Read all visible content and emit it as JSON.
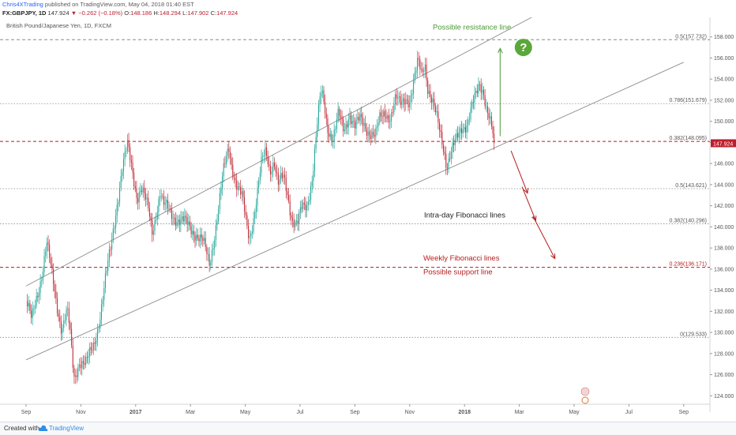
{
  "header": {
    "author": "Chris4XTrading",
    "published": "published on TradingView.com, May 04, 2018 01:40 EST",
    "symbol_interval": "FX:GBPJPY, 1D",
    "last": "147.924",
    "change": "▼ −0.262 (−0.18%)",
    "o_label": "O:",
    "o": "148.186",
    "h_label": "H:",
    "h": "148.294",
    "l_label": "L:",
    "l": "147.902",
    "c_label": "C:",
    "c": "147.924"
  },
  "footer": {
    "created_with": "Created with",
    "brand": "TradingView"
  },
  "colors": {
    "up": "#26a69a",
    "down": "#c22f3a",
    "channel": "#8c8c8c",
    "fib_weekly": "#b71c1c",
    "annotation_green": "#4c9a36",
    "intraday_label": "#222222",
    "axis_text": "#555555",
    "price_badge": "#c01d2c"
  },
  "chart_data": {
    "type": "candlestick",
    "instrument": "British Pound/Japanese Yen, 1D, FXCM",
    "x_ticks": [
      "Sep",
      "Nov",
      "2017",
      "Mar",
      "May",
      "Jul",
      "Sep",
      "Nov",
      "2018",
      "Mar",
      "May",
      "Jul",
      "Sep"
    ],
    "y_ticks": [
      "158.000",
      "156.000",
      "154.000",
      "152.000",
      "150.000",
      "148.000",
      "146.000",
      "144.000",
      "142.000",
      "140.000",
      "138.000",
      "136.000",
      "134.000",
      "132.000",
      "130.000",
      "128.000",
      "126.000",
      "124.000"
    ],
    "ylim": [
      123.2,
      159.4
    ],
    "last_price": "147.924",
    "price_path": [
      {
        "m": 0,
        "p": 133.0
      },
      {
        "m": 0.2,
        "p": 131.0
      },
      {
        "m": 0.4,
        "p": 133.5
      },
      {
        "m": 0.6,
        "p": 136.0
      },
      {
        "m": 0.75,
        "p": 138.5
      },
      {
        "m": 0.9,
        "p": 136.0
      },
      {
        "m": 1.1,
        "p": 133.0
      },
      {
        "m": 1.3,
        "p": 130.5
      },
      {
        "m": 1.5,
        "p": 132.0
      },
      {
        "m": 1.6,
        "p": 130.0
      },
      {
        "m": 1.75,
        "p": 125.5
      },
      {
        "m": 1.95,
        "p": 127.5
      },
      {
        "m": 2.2,
        "p": 127.0
      },
      {
        "m": 2.45,
        "p": 128.5
      },
      {
        "m": 2.65,
        "p": 131.0
      },
      {
        "m": 2.9,
        "p": 135.0
      },
      {
        "m": 3.1,
        "p": 138.0
      },
      {
        "m": 3.3,
        "p": 142.0
      },
      {
        "m": 3.5,
        "p": 145.5
      },
      {
        "m": 3.7,
        "p": 147.5
      },
      {
        "m": 3.9,
        "p": 145.0
      },
      {
        "m": 4.05,
        "p": 143.0
      },
      {
        "m": 4.2,
        "p": 143.8
      },
      {
        "m": 4.35,
        "p": 142.5
      },
      {
        "m": 4.5,
        "p": 141.0
      },
      {
        "m": 4.6,
        "p": 139.5
      },
      {
        "m": 4.75,
        "p": 141.5
      },
      {
        "m": 4.9,
        "p": 143.5
      },
      {
        "m": 5.0,
        "p": 142.0
      },
      {
        "m": 5.2,
        "p": 141.5
      },
      {
        "m": 5.45,
        "p": 141.0
      },
      {
        "m": 5.7,
        "p": 140.5
      },
      {
        "m": 5.95,
        "p": 140.0
      },
      {
        "m": 6.2,
        "p": 139.5
      },
      {
        "m": 6.45,
        "p": 138.5
      },
      {
        "m": 6.6,
        "p": 137.2
      },
      {
        "m": 6.7,
        "p": 136.4
      },
      {
        "m": 6.85,
        "p": 139.0
      },
      {
        "m": 7.0,
        "p": 141.5
      },
      {
        "m": 7.2,
        "p": 145.0
      },
      {
        "m": 7.4,
        "p": 147.5
      },
      {
        "m": 7.5,
        "p": 146.0
      },
      {
        "m": 7.7,
        "p": 144.0
      },
      {
        "m": 7.9,
        "p": 142.5
      },
      {
        "m": 8.05,
        "p": 140.0
      },
      {
        "m": 8.15,
        "p": 139.0
      },
      {
        "m": 8.3,
        "p": 141.0
      },
      {
        "m": 8.45,
        "p": 143.5
      },
      {
        "m": 8.6,
        "p": 146.0
      },
      {
        "m": 8.75,
        "p": 147.0
      },
      {
        "m": 8.9,
        "p": 145.5
      },
      {
        "m": 9.05,
        "p": 146.5
      },
      {
        "m": 9.2,
        "p": 144.0
      },
      {
        "m": 9.4,
        "p": 144.5
      },
      {
        "m": 9.55,
        "p": 143.0
      },
      {
        "m": 9.7,
        "p": 141.0
      },
      {
        "m": 9.9,
        "p": 140.2
      },
      {
        "m": 10.05,
        "p": 141.5
      },
      {
        "m": 10.25,
        "p": 142.0
      },
      {
        "m": 10.45,
        "p": 145.0
      },
      {
        "m": 10.6,
        "p": 149.0
      },
      {
        "m": 10.75,
        "p": 152.5
      },
      {
        "m": 10.85,
        "p": 152.0
      },
      {
        "m": 11.0,
        "p": 149.5
      },
      {
        "m": 11.2,
        "p": 148.5
      },
      {
        "m": 11.4,
        "p": 150.5
      },
      {
        "m": 11.6,
        "p": 149.0
      },
      {
        "m": 11.8,
        "p": 151.0
      },
      {
        "m": 12.0,
        "p": 149.5
      },
      {
        "m": 12.2,
        "p": 150.0
      },
      {
        "m": 12.4,
        "p": 149.5
      },
      {
        "m": 12.6,
        "p": 149.0
      },
      {
        "m": 12.75,
        "p": 148.5
      },
      {
        "m": 12.9,
        "p": 150.0
      },
      {
        "m": 13.1,
        "p": 151.0
      },
      {
        "m": 13.3,
        "p": 150.5
      },
      {
        "m": 13.5,
        "p": 152.0
      },
      {
        "m": 13.65,
        "p": 151.5
      },
      {
        "m": 13.85,
        "p": 152.5
      },
      {
        "m": 14.0,
        "p": 152.0
      },
      {
        "m": 14.15,
        "p": 153.5
      },
      {
        "m": 14.3,
        "p": 155.5
      },
      {
        "m": 14.45,
        "p": 154.5
      },
      {
        "m": 14.55,
        "p": 156.0
      },
      {
        "m": 14.65,
        "p": 153.5
      },
      {
        "m": 14.8,
        "p": 152.0
      },
      {
        "m": 14.95,
        "p": 150.5
      },
      {
        "m": 15.1,
        "p": 149.0
      },
      {
        "m": 15.25,
        "p": 147.5
      },
      {
        "m": 15.35,
        "p": 146.0
      },
      {
        "m": 15.5,
        "p": 147.0
      },
      {
        "m": 15.7,
        "p": 148.0
      },
      {
        "m": 15.9,
        "p": 149.5
      },
      {
        "m": 16.1,
        "p": 150.0
      },
      {
        "m": 16.3,
        "p": 151.5
      },
      {
        "m": 16.45,
        "p": 152.5
      },
      {
        "m": 16.55,
        "p": 153.5
      },
      {
        "m": 16.7,
        "p": 153.0
      },
      {
        "m": 16.8,
        "p": 151.5
      },
      {
        "m": 16.9,
        "p": 150.5
      },
      {
        "m": 17.0,
        "p": 149.0
      },
      {
        "m": 17.08,
        "p": 147.924
      }
    ],
    "channel_upper": [
      {
        "m": 0,
        "p": 134.4
      },
      {
        "m": 18.7,
        "p": 160.2
      }
    ],
    "channel_lower": [
      {
        "m": 0,
        "p": 127.4
      },
      {
        "m": 24.0,
        "p": 155.6
      }
    ],
    "horizontal_levels": [
      {
        "price": 157.732,
        "style": "dashed",
        "label": "0.5(157.732)",
        "scope": "weekly"
      },
      {
        "price": 151.679,
        "style": "dotted",
        "label": "0.786(151.679)",
        "scope": "intraday"
      },
      {
        "price": 148.095,
        "style": "dashed",
        "label": "0.382(148.095)",
        "scope": "weekly"
      },
      {
        "price": 143.621,
        "style": "dotted",
        "label": "0.5(143.621)",
        "scope": "intraday"
      },
      {
        "price": 140.296,
        "style": "dotted",
        "label": "0.382(140.296)",
        "scope": "intraday"
      },
      {
        "price": 136.171,
        "style": "dashed",
        "label": "0.236(136.171)",
        "scope": "weekly"
      },
      {
        "price": 129.533,
        "style": "dotted",
        "label": "0(129.533)",
        "scope": "intraday"
      }
    ],
    "annotations": [
      {
        "text": "Possible resistance line",
        "price": 158.7
      },
      {
        "text": "Intra-day Fibonacci lines",
        "price": 140.9
      },
      {
        "text": "Weekly Fibonacci lines",
        "price": 136.8
      },
      {
        "text": "Possible support line",
        "price": 135.5
      }
    ],
    "question_mark": "?",
    "arrows": [
      {
        "direction": "up",
        "from": {
          "m": 17.3,
          "p": 148.6
        },
        "to": {
          "m": 17.3,
          "p": 156.9
        }
      },
      {
        "direction": "down",
        "from": {
          "m": 17.7,
          "p": 147.2
        },
        "to": {
          "m": 18.3,
          "p": 143.2
        }
      },
      {
        "direction": "down",
        "from": {
          "m": 18.1,
          "p": 143.8
        },
        "to": {
          "m": 18.6,
          "p": 140.6
        }
      },
      {
        "direction": "down",
        "from": {
          "m": 18.5,
          "p": 141.0
        },
        "to": {
          "m": 19.3,
          "p": 137.0
        }
      }
    ]
  }
}
